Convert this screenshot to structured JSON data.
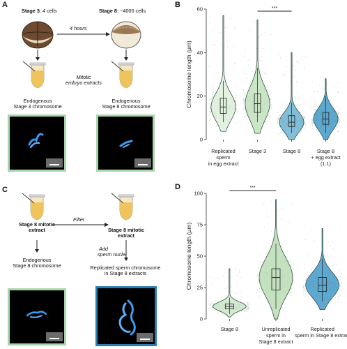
{
  "panel_a": {
    "letter": "A",
    "stage3_prefix": "Stage 3",
    "stage3_suffix": ": 4 cells",
    "stage8_prefix": "Stage 8",
    "stage8_suffix": ": ~4000 cells",
    "arrow_label": "4 hours",
    "extract_label_1": "Mitotic",
    "extract_label_2": "embryo extracts",
    "left_caption_1": "Endogenous",
    "left_caption_2": "Stage 3 chromosome",
    "right_caption_1": "Endogenous",
    "right_caption_2": "Stage 8 chromosome"
  },
  "panel_b": {
    "letter": "B",
    "significance": "***",
    "chart_data": {
      "type": "violin",
      "ylabel": "Chromosome length (μm)",
      "ylim": [
        0,
        60
      ],
      "yticks": [
        0,
        20,
        40,
        60
      ],
      "categories": [
        "Replicated sperm in egg extract",
        "Stage 3",
        "Stage 8",
        "Stage 8 + egg extract (1:1)"
      ],
      "category_lines": [
        [
          "Replicated",
          "sperm",
          "in egg extract"
        ],
        [
          "Stage 3"
        ],
        [
          "Stage 8"
        ],
        [
          "Stage 8",
          "+ egg extract",
          "(1:1)"
        ]
      ],
      "medians": [
        15,
        16.5,
        8,
        9.5
      ],
      "q1": [
        12,
        12.5,
        6,
        7
      ],
      "q3": [
        19,
        21,
        11,
        12.5
      ],
      "whisker_low": [
        8,
        8,
        3,
        3
      ],
      "whisker_high": [
        27,
        33,
        17,
        20
      ],
      "max": [
        57,
        55,
        40,
        28
      ],
      "colors": [
        "#d8ecd6",
        "#b8ddb3",
        "#5aa9cb",
        "#2a8cc0"
      ]
    }
  },
  "panel_c": {
    "letter": "C",
    "left_title_1": "Stage 8 mitotic",
    "left_title_2": "extract",
    "filter_label": "Filter",
    "right_title_1": "Stage 8 mitotic",
    "right_title_2": "extract",
    "add_label_1": "Add",
    "add_label_2": "sperm nuclei",
    "left_caption_1": "Endogenous",
    "left_caption_2": "Stage 8 chromosome",
    "right_caption_1": "Replicated sperm chromosome",
    "right_caption_2": "in Stage 8 extracts"
  },
  "panel_d": {
    "letter": "D",
    "significance": "***",
    "chart_data": {
      "type": "violin",
      "ylabel": "Chromosome length (μm)",
      "ylim": [
        0,
        100
      ],
      "yticks": [
        0,
        25,
        50,
        75,
        100
      ],
      "categories": [
        "Stage 8",
        "Unreplicated sperm in Stage 8 extract",
        "Replicated sperm in Stage 8 extract"
      ],
      "category_lines": [
        [
          "Stage 8"
        ],
        [
          "Unreplicated",
          "sperm in",
          "Stage 8 extract"
        ],
        [
          "Replicated",
          "sperm in Stage 8 extract"
        ]
      ],
      "medians": [
        10,
        33,
        27
      ],
      "q1": [
        8,
        23,
        22
      ],
      "q3": [
        12,
        40,
        33
      ],
      "whisker_low": [
        4,
        8,
        14
      ],
      "whisker_high": [
        17,
        60,
        48
      ],
      "max": [
        40,
        95,
        72
      ],
      "colors": [
        "#c7e3c3",
        "#b0d8ab",
        "#2a8cc0"
      ]
    }
  }
}
